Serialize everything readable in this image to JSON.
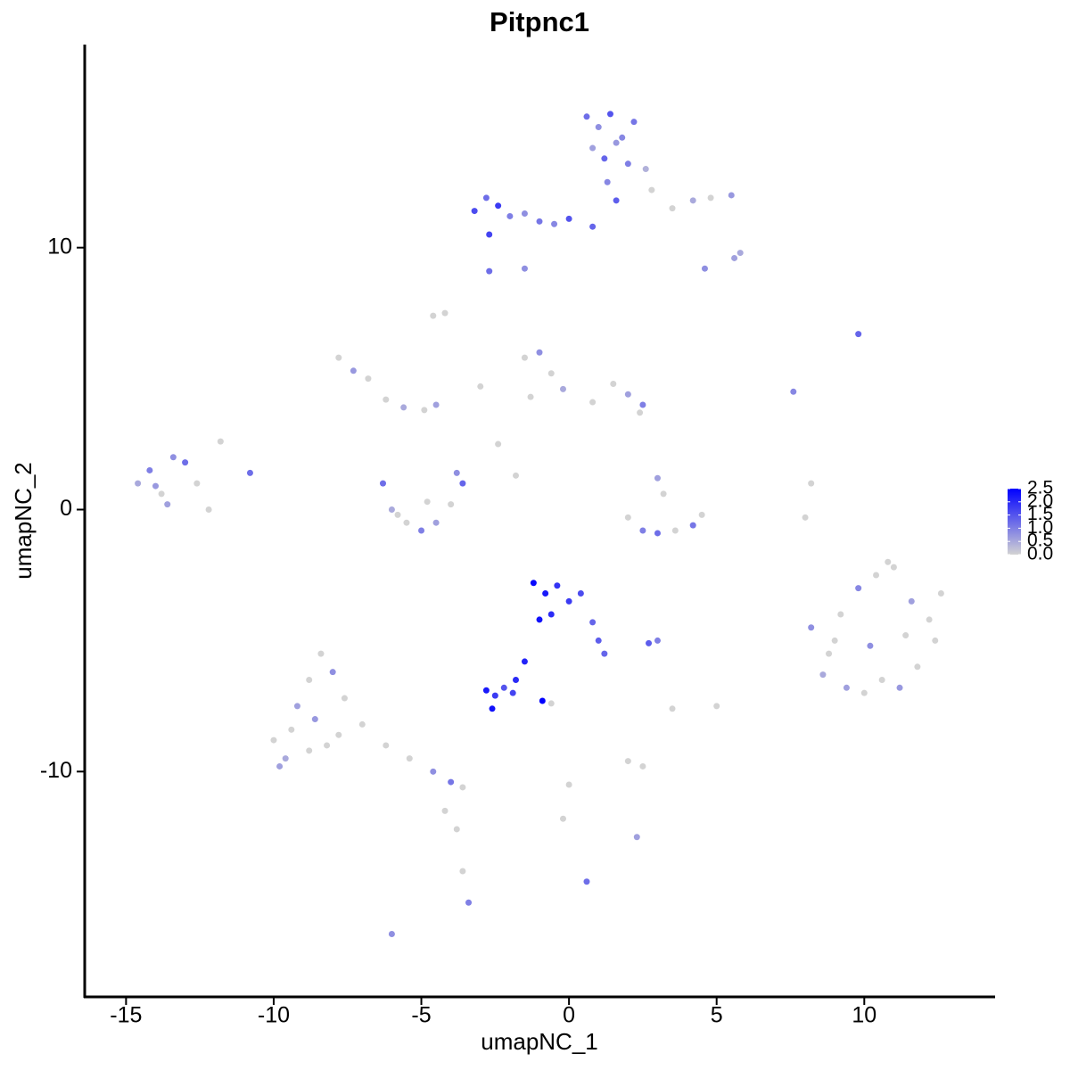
{
  "chart_data": {
    "type": "scatter",
    "title": "Pitpnc1",
    "x_label": "umapNC_1",
    "y_label": "umapNC_2",
    "xlim": [
      -16.4,
      14.4
    ],
    "ylim": [
      -18.6,
      17.75
    ],
    "xticks": [
      -15,
      -10,
      -5,
      0,
      5,
      10
    ],
    "yticks": [
      -10,
      0,
      10
    ],
    "colors": [
      "#d3d3d3",
      "#0000ff"
    ],
    "colorlim": [
      0,
      2.5
    ],
    "colorticks": [
      {
        "value": 0,
        "label": "0.0"
      },
      {
        "value": 0.5,
        "label": "0.5"
      },
      {
        "value": 1,
        "label": "1.0"
      },
      {
        "value": 1.5,
        "label": "1.5"
      },
      {
        "value": 2,
        "label": "2.0"
      },
      {
        "value": 2.5,
        "label": "2.5"
      }
    ],
    "x": [
      0.6,
      1.0,
      1.4,
      1.8,
      2.2,
      0.8,
      1.2,
      1.6,
      2.0,
      2.6,
      1.3,
      1.6,
      2.8,
      3.5,
      4.2,
      4.8,
      5.5,
      5.6,
      4.6,
      5.8,
      -3.2,
      -2.8,
      -2.4,
      -2.0,
      -1.5,
      -1.0,
      -0.5,
      0.0,
      0.8,
      -2.7,
      -1.5,
      -1.0,
      -0.6,
      -0.2,
      -1.3,
      0.8,
      1.5,
      2.0,
      2.5,
      2.4,
      -7.8,
      -7.3,
      -6.8,
      -6.2,
      -4.5,
      -4.2,
      -3.0,
      -2.4,
      -4.9,
      -1.8,
      -6.3,
      -6.0,
      -5.5,
      -5.0,
      -4.5,
      -4.0,
      -3.6,
      -3.8,
      -5.8,
      -4.8,
      -14.6,
      -14.2,
      -13.8,
      -13.4,
      -13.0,
      -12.6,
      -12.2,
      -13.6,
      -14.0,
      -11.8,
      3.0,
      3.2,
      2.0,
      2.5,
      3.0,
      3.6,
      4.2,
      4.5,
      8.0,
      9.8,
      8.2,
      8.8,
      9.4,
      10.0,
      10.6,
      11.2,
      11.8,
      12.4,
      8.6,
      9.2,
      9.8,
      10.4,
      11.0,
      11.6,
      12.2,
      9.0,
      10.2,
      11.4,
      12.6,
      10.8,
      -1.2,
      -0.8,
      -0.4,
      0.0,
      0.4,
      -1.0,
      -0.6,
      0.8,
      1.0,
      -1.5,
      -1.8,
      -2.8,
      -2.5,
      -2.2,
      -1.9,
      -2.6,
      -0.9,
      2.7,
      3.0,
      1.2,
      -10.0,
      -9.6,
      -9.2,
      -8.8,
      -8.4,
      -8.0,
      -7.6,
      -9.4,
      -8.6,
      -7.8,
      -8.8,
      -8.2,
      -9.8,
      -7.0,
      -6.2,
      -5.4,
      -4.6,
      -4.0,
      -3.6,
      -3.4,
      -3.8,
      -3.6,
      -4.2,
      -6.0,
      2.0,
      2.5,
      0.0,
      -0.2,
      0.6,
      2.3,
      -1.5,
      -2.7,
      -4.6,
      -5.6,
      7.6,
      8.2,
      3.5,
      5.0,
      -10.8,
      -0.6
    ],
    "y": [
      15.0,
      14.6,
      15.1,
      14.2,
      14.8,
      13.8,
      13.4,
      14.0,
      13.2,
      13.0,
      12.5,
      11.8,
      12.2,
      11.5,
      11.8,
      11.9,
      12.0,
      9.6,
      9.2,
      9.8,
      11.4,
      11.9,
      11.6,
      11.2,
      11.3,
      11.0,
      10.9,
      11.1,
      10.8,
      10.5,
      5.8,
      6.0,
      5.2,
      4.6,
      4.3,
      4.1,
      4.8,
      4.4,
      4.0,
      3.7,
      5.8,
      5.3,
      5.0,
      4.2,
      4.0,
      7.5,
      4.7,
      2.5,
      3.8,
      1.3,
      1.0,
      0.0,
      -0.5,
      -0.8,
      -0.5,
      0.2,
      1.0,
      1.4,
      -0.2,
      0.3,
      1.0,
      1.5,
      0.6,
      2.0,
      1.8,
      1.0,
      0.0,
      0.2,
      0.9,
      2.6,
      1.2,
      0.6,
      -0.3,
      -0.8,
      -0.9,
      -0.8,
      -0.6,
      -0.2,
      -0.3,
      6.7,
      -4.5,
      -5.5,
      -6.8,
      -7.0,
      -6.5,
      -6.8,
      -6.0,
      -5.0,
      -6.3,
      -4.0,
      -3.0,
      -2.5,
      -2.2,
      -3.5,
      -4.2,
      -5.0,
      -5.2,
      -4.8,
      -3.2,
      -2.0,
      -2.8,
      -3.2,
      -2.9,
      -3.5,
      -3.2,
      -4.2,
      -4.0,
      -4.3,
      -5.0,
      -5.8,
      -6.5,
      -6.9,
      -7.1,
      -6.8,
      -7.0,
      -7.6,
      -7.3,
      -5.1,
      -5.0,
      -5.5,
      -8.8,
      -9.5,
      -7.5,
      -6.5,
      -5.5,
      -6.2,
      -7.2,
      -8.4,
      -8.0,
      -8.6,
      -9.2,
      -9.0,
      -9.8,
      -8.2,
      -9.0,
      -9.5,
      -10.0,
      -10.4,
      -10.6,
      -15.0,
      -12.2,
      -13.8,
      -11.5,
      -16.2,
      -9.6,
      -9.8,
      -10.5,
      -11.8,
      -14.2,
      -12.5,
      9.2,
      9.1,
      7.4,
      3.9,
      4.5,
      1.0,
      -7.6,
      -7.5,
      1.4,
      -7.4
    ],
    "expression": [
      1.2,
      0.8,
      1.5,
      0.9,
      1.1,
      0.6,
      1.3,
      0.7,
      1.0,
      0.4,
      0.9,
      1.4,
      0,
      0,
      0.5,
      0,
      0.7,
      0.6,
      0.8,
      0.5,
      1.6,
      1.2,
      1.8,
      1.0,
      0.8,
      1.1,
      0.9,
      1.5,
      1.3,
      1.7,
      0,
      0.8,
      0,
      0.5,
      0,
      0,
      0,
      0.6,
      1.0,
      0,
      0,
      0.7,
      0,
      0,
      0.6,
      0,
      0,
      0,
      0,
      0,
      1.2,
      0.5,
      0,
      1.0,
      0.6,
      0,
      1.3,
      0.8,
      0,
      0,
      0.5,
      1.0,
      0,
      0.8,
      1.2,
      0,
      0,
      0.6,
      0.7,
      0,
      0.6,
      0,
      0,
      1.0,
      1.2,
      0,
      1.1,
      0,
      0,
      1.3,
      0.8,
      0,
      0.6,
      0,
      0,
      0.7,
      0,
      0,
      0.5,
      0,
      0.9,
      0,
      0,
      0.6,
      0,
      0,
      0.8,
      0,
      0,
      0,
      2.4,
      2.2,
      1.9,
      1.8,
      1.6,
      2.3,
      2.0,
      1.3,
      1.4,
      2.1,
      2.0,
      2.2,
      1.8,
      1.5,
      1.7,
      2.3,
      2.5,
      1.4,
      1.0,
      1.3,
      0,
      0.5,
      0.6,
      0,
      0,
      0.8,
      0,
      0,
      0.7,
      0,
      0,
      0,
      0.6,
      0,
      0,
      0,
      0.8,
      1.1,
      0,
      1.0,
      0,
      0,
      0,
      0.8,
      0,
      0,
      0,
      0,
      1.2,
      0.6,
      0.8,
      1.2,
      0,
      0.5,
      0.9,
      0,
      0,
      0,
      1.2,
      0
    ]
  }
}
